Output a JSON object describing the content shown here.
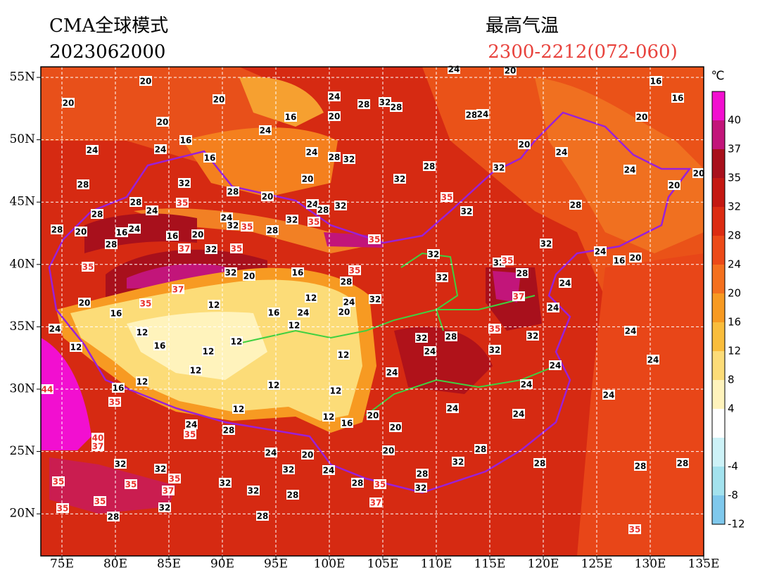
{
  "header": {
    "model": "CMA全球模式",
    "init_time": "2023062000",
    "title": "最高气温",
    "valid": "2300-2212(072-060)"
  },
  "axes": {
    "lon_labels": [
      "75E",
      "80E",
      "85E",
      "90E",
      "95E",
      "100E",
      "105E",
      "110E",
      "115E",
      "120E",
      "125E",
      "130E",
      "135E"
    ],
    "lat_labels": [
      "55N",
      "50N",
      "45N",
      "40N",
      "35N",
      "30N",
      "25N",
      "20N"
    ]
  },
  "colorbar": {
    "unit": "℃",
    "labels": [
      40,
      37,
      35,
      32,
      28,
      24,
      20,
      16,
      12,
      8,
      4,
      -4,
      -8,
      -12
    ],
    "colors": [
      "#f20fd0",
      "#c2157a",
      "#a8101c",
      "#c41812",
      "#dc2c12",
      "#ec4a18",
      "#f4701e",
      "#f79a22",
      "#f9bd3c",
      "#fcdc78",
      "#fff3bc",
      "#ffffff",
      "#cdf2f7",
      "#a3e2ee",
      "#7fc8ec"
    ]
  },
  "contour_labels": [
    "20",
    "20",
    "20",
    "24",
    "28",
    "32",
    "28",
    "28",
    "24",
    "24",
    "20",
    "16",
    "16",
    "20",
    "20",
    "16",
    "20",
    "24",
    "16",
    "24",
    "24",
    "16",
    "24",
    "28",
    "32",
    "28",
    "20",
    "24",
    "32",
    "24",
    "20",
    "20",
    "28",
    "32",
    "20",
    "32",
    "28",
    "20",
    "28",
    "35",
    "24",
    "28",
    "24",
    "28",
    "32",
    "35",
    "32",
    "28",
    "24",
    "32",
    "35",
    "35",
    "32",
    "28",
    "28",
    "20",
    "16",
    "24",
    "16",
    "20",
    "35",
    "28",
    "37",
    "32",
    "35",
    "32",
    "24",
    "32",
    "32",
    "35",
    "16",
    "20",
    "35",
    "32",
    "20",
    "16",
    "35",
    "32",
    "28",
    "24",
    "28",
    "37",
    "12",
    "12",
    "20",
    "35",
    "16",
    "16",
    "24",
    "20",
    "24",
    "32",
    "37",
    "24",
    "24",
    "12",
    "12",
    "35",
    "24",
    "32",
    "28",
    "32",
    "12",
    "16",
    "12",
    "12",
    "24",
    "32",
    "12",
    "24",
    "12",
    "24",
    "24",
    "12",
    "16",
    "12",
    "12",
    "24",
    "24",
    "44",
    "35",
    "12",
    "24",
    "24",
    "20",
    "12",
    "16",
    "20",
    "24",
    "28",
    "35",
    "40",
    "37",
    "28",
    "24",
    "20",
    "20",
    "32",
    "32",
    "32",
    "24",
    "32",
    "28",
    "28",
    "28",
    "35",
    "35",
    "35",
    "32",
    "37",
    "28",
    "35",
    "28",
    "32",
    "32",
    "28",
    "35",
    "35",
    "32",
    "37",
    "28",
    "28",
    "35"
  ]
}
